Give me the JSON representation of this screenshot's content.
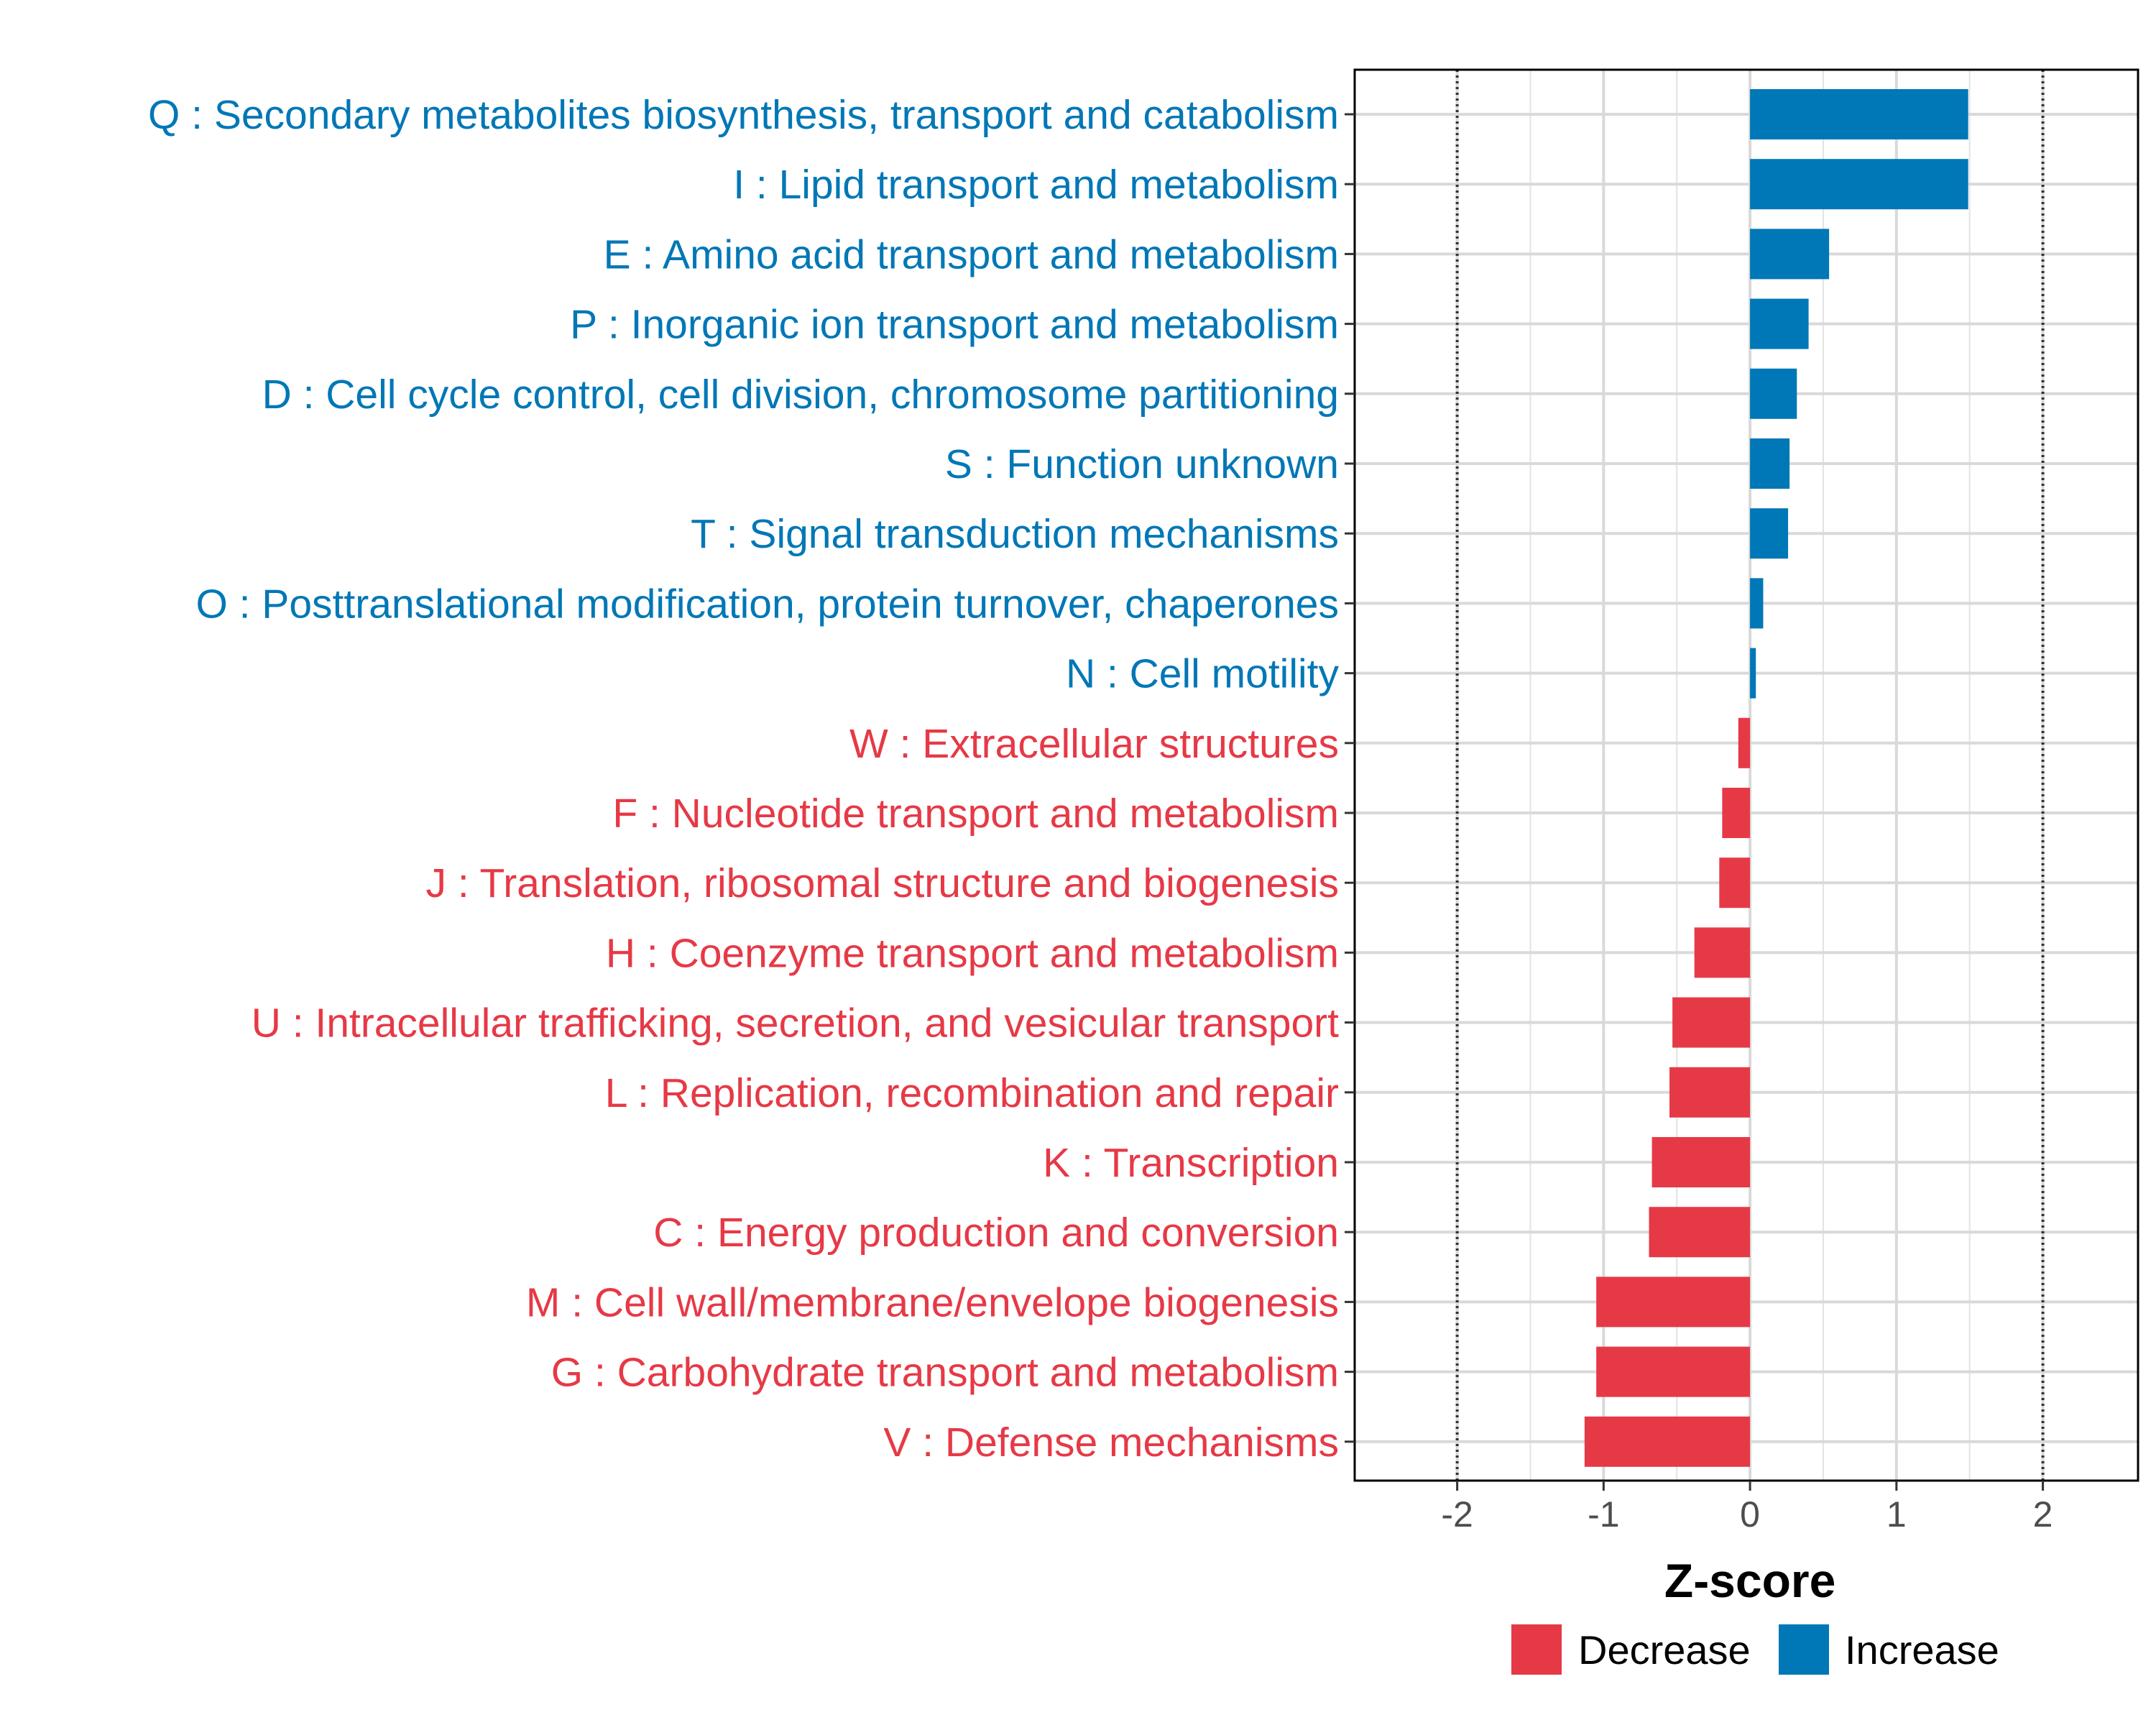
{
  "chart_data": {
    "type": "bar",
    "orientation": "horizontal",
    "title": "",
    "xlabel": "Z-score",
    "ylabel": "",
    "xlim": [
      -2.7,
      2.65
    ],
    "x_ticks": [
      -2,
      -1,
      0,
      1,
      2
    ],
    "x_tick_labels": [
      "-2",
      "-1",
      "0",
      "1",
      "2"
    ],
    "reference_lines": [
      -2,
      2
    ],
    "grid": true,
    "legend_position": "bottom",
    "colors": {
      "Decrease": "#e63946",
      "Increase": "#0077b6"
    },
    "legend": [
      {
        "name": "Decrease",
        "color": "#e63946"
      },
      {
        "name": "Increase",
        "color": "#0077b6"
      }
    ],
    "categories": [
      "Q : Secondary metabolites biosynthesis, transport and catabolism",
      "I : Lipid transport and metabolism",
      "E : Amino acid transport and metabolism",
      "P : Inorganic ion transport and metabolism",
      "D : Cell cycle control, cell division, chromosome partitioning",
      "S : Function unknown",
      "T : Signal transduction mechanisms",
      "O : Posttranslational modification, protein turnover, chaperones",
      "N : Cell motility",
      "W : Extracellular structures",
      "F : Nucleotide transport and metabolism",
      "J : Translation, ribosomal structure and biogenesis",
      "H : Coenzyme transport and metabolism",
      "U : Intracellular trafficking, secretion, and vesicular transport",
      "L : Replication, recombination and repair",
      "K : Transcription",
      "C : Energy production and conversion",
      "M : Cell wall/membrane/envelope biogenesis",
      "G : Carbohydrate transport and metabolism",
      "V : Defense mechanisms"
    ],
    "values": [
      1.49,
      1.49,
      0.54,
      0.4,
      0.32,
      0.27,
      0.26,
      0.09,
      0.04,
      -0.08,
      -0.19,
      -0.21,
      -0.38,
      -0.53,
      -0.55,
      -0.67,
      -0.69,
      -1.05,
      -1.05,
      -1.13
    ],
    "groups": [
      "Increase",
      "Increase",
      "Increase",
      "Increase",
      "Increase",
      "Increase",
      "Increase",
      "Increase",
      "Increase",
      "Decrease",
      "Decrease",
      "Decrease",
      "Decrease",
      "Decrease",
      "Decrease",
      "Decrease",
      "Decrease",
      "Decrease",
      "Decrease",
      "Decrease"
    ]
  }
}
